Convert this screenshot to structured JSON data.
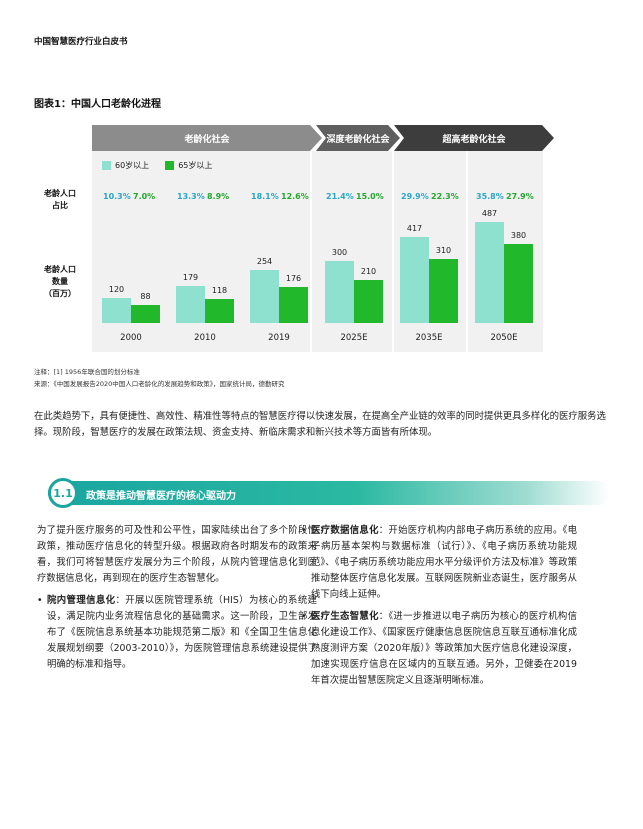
{
  "header": {
    "title": "中国智慧医疗行业白皮书"
  },
  "figure": {
    "title": "图表1：中国人口老龄化进程",
    "phases": [
      "老龄化社会",
      "深度老龄化社会",
      "超高老龄化社会"
    ],
    "row_labels": {
      "pct": "老龄人口\n占比",
      "count": "老龄人口\n数量\n（百万）"
    },
    "legend": [
      {
        "name": "60岁以上",
        "color": "#8ee0cf"
      },
      {
        "name": "65岁以上",
        "color": "#22b82c"
      }
    ]
  },
  "chart_data": {
    "type": "bar",
    "categories": [
      "2000",
      "2010",
      "2019",
      "2025E",
      "2035E",
      "2050E"
    ],
    "series": [
      {
        "name": "60岁以上",
        "color": "#8ee0cf",
        "values": [
          120,
          179,
          254,
          300,
          417,
          487
        ],
        "pct": [
          "10.3%",
          "13.3%",
          "18.1%",
          "21.4%",
          "29.9%",
          "35.8%"
        ]
      },
      {
        "name": "65岁以上",
        "color": "#22b82c",
        "values": [
          88,
          118,
          176,
          210,
          310,
          380
        ],
        "pct": [
          "7.0%",
          "8.9%",
          "12.6%",
          "15.0%",
          "22.3%",
          "27.9%"
        ]
      }
    ],
    "ylim": [
      0,
      500
    ]
  },
  "notes": {
    "note": "注释：[1] 1956年联合国的划分标准",
    "source": "来源：《中国发展报告2020中国人口老龄化的发展趋势和政策》，国家统计局，德勤研究"
  },
  "intro": "在此类趋势下，具有便捷性、高效性、精准性等特点的智慧医疗得以快速发展，在提高全产业链的效率的同时提供更具多样化的医疗服务选择。现阶段，智慧医疗的发展在政策法规、资金支持、新临床需求和新兴技术等方面皆有所体现。",
  "section": {
    "number": "1.1",
    "title": "政策是推动智慧医疗的核心驱动力"
  },
  "left_column": {
    "paragraph": "为了提升医疗服务的可及性和公平性，国家陆续出台了多个阶段性政策，推动医疗信息化的转型升级。根据政府各时期发布的政策来看，我们可将智慧医疗发展分为三个阶段，从院内管理信息化到医疗数据信息化，再到现在的医疗生态智慧化。",
    "bullets": [
      {
        "label": "院内管理信息化",
        "text": "：开展以医院管理系统（HIS）为核心的系统建设，满足院内业务流程信息化的基础需求。这一阶段，卫生部发布了《医院信息系统基本功能规范第二版》和《全国卫生信息化发展规划纲要（2003-2010）》，为医院管理信息系统建设提供了明确的标准和指导。"
      }
    ]
  },
  "right_column": {
    "bullets": [
      {
        "label": "医疗数据信息化",
        "text": "：开始医疗机构内部电子病历系统的应用。《电子病历基本架构与数据标准（试行）》、《电子病历系统功能规范》、《电子病历系统功能应用水平分级评价方法及标准》等政策推动整体医疗信息化发展。互联网医院新业态诞生，医疗服务从线下向线上延伸。"
      },
      {
        "label": "医疗生态智慧化",
        "text": "：《进一步推进以电子病历为核心的医疗机构信息化建设工作》、《国家医疗健康信息医院信息互联互通标准化成熟度测评方案（2020年版）》等政策加大医疗信息化建设深度，加速实现医疗信息在区域内的互联互通。另外，卫健委在2019年首次提出智慧医院定义且逐渐明晰标准。"
      }
    ]
  }
}
